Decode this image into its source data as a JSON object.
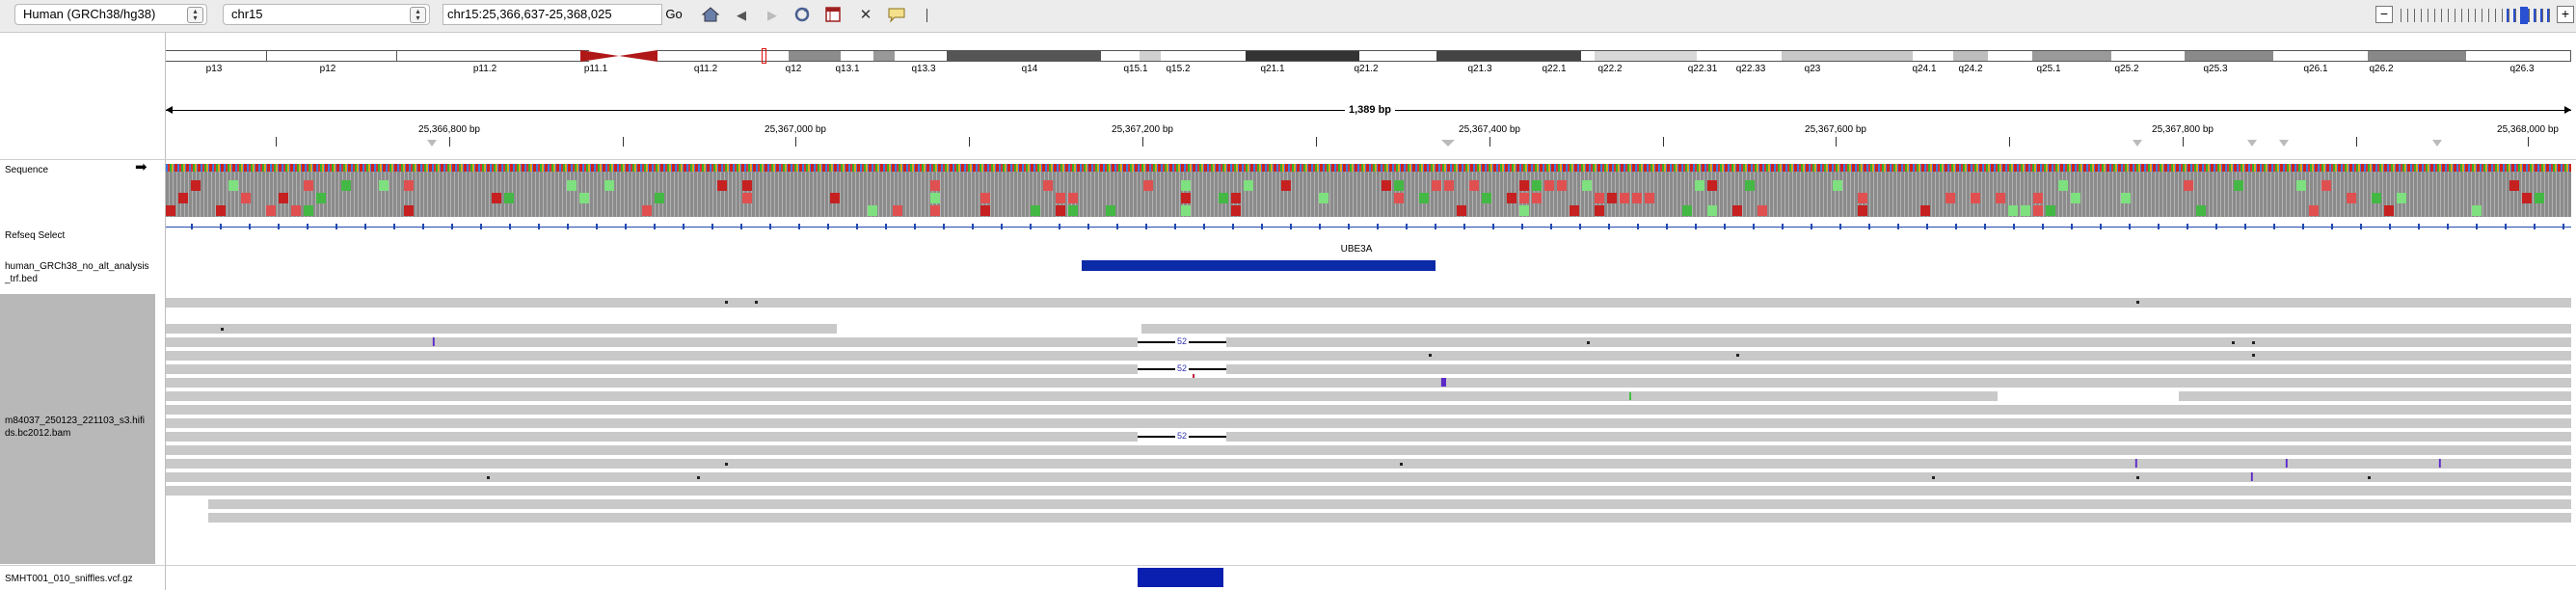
{
  "toolbar": {
    "genome": "Human (GRCh38/hg38)",
    "chromosome": "chr15",
    "locus": "chr15:25,366,637-25,368,025",
    "go_label": "Go",
    "zoom_minus": "−",
    "zoom_plus": "+"
  },
  "ideogram": {
    "bands": [
      "p13",
      "p12",
      "p11.2",
      "p11.1",
      "q11.2",
      "q12",
      "q13.1",
      "q13.3",
      "q14",
      "q15.1",
      "q15.2",
      "q21.1",
      "q21.2",
      "q21.3",
      "q22.1",
      "q22.2",
      "q22.31",
      "q22.33",
      "q23",
      "q24.1",
      "q24.2",
      "q25.1",
      "q25.2",
      "q25.3",
      "q26.1",
      "q26.2",
      "q26.3"
    ]
  },
  "ruler": {
    "span": "1,389 bp",
    "ticks": [
      "25,366,800 bp",
      "25,367,000 bp",
      "25,367,200 bp",
      "25,367,400 bp",
      "25,367,600 bp",
      "25,367,800 bp",
      "25,368,000 bp"
    ]
  },
  "tracks": {
    "sequence": "Sequence",
    "refseq": "Refseq Select",
    "bed_line1": "human_GRCh38_no_alt_analysis",
    "bed_line2": "_trf.bed",
    "bam_line1": "m84037_250123_221103_s3.hifi",
    "bam_line2": "ds.bc2012.bam",
    "vcf": "SMHT001_010_sniffles.vcf.gz"
  },
  "gene": {
    "name": "UBE3A"
  },
  "deletion_label": "52",
  "insertion_mark": "I",
  "insertion_mark_triple": "III",
  "colors": {
    "bed_feature": "#0a2aa8",
    "vcf_feature": "#0a1fb0",
    "read": "#c9c9c9",
    "insertion": "#5a28c8"
  }
}
